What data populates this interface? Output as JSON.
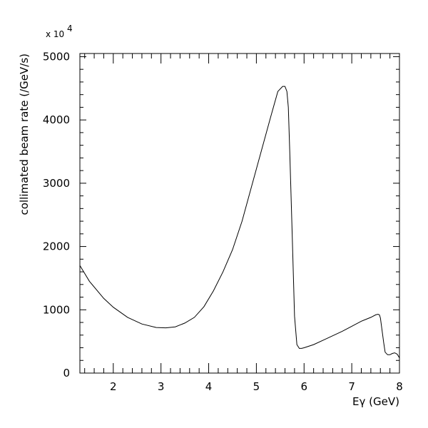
{
  "chart_data": {
    "type": "line",
    "title": "",
    "xlabel": "Eγ (GeV)",
    "ylabel": "collimated beam rate (/GeV/s)",
    "y_multiplier": "x 10",
    "y_multiplier_exponent": "4",
    "xlim": [
      1.3,
      8.0
    ],
    "ylim": [
      0,
      5050
    ],
    "x_ticks": [
      "2",
      "3",
      "4",
      "5",
      "6",
      "7",
      "8"
    ],
    "y_ticks": [
      "0",
      "1000",
      "2000",
      "3000",
      "4000",
      "5000"
    ],
    "grid": false,
    "series": [
      {
        "name": "",
        "x": [
          1.3,
          1.5,
          1.8,
          2.0,
          2.3,
          2.6,
          2.9,
          3.1,
          3.3,
          3.5,
          3.7,
          3.9,
          4.1,
          4.3,
          4.5,
          4.7,
          4.9,
          5.1,
          5.3,
          5.45,
          5.55,
          5.6,
          5.64,
          5.67,
          5.7,
          5.75,
          5.8,
          5.85,
          5.9,
          5.95,
          6.0,
          6.2,
          6.4,
          6.6,
          6.8,
          7.0,
          7.2,
          7.4,
          7.5,
          7.55,
          7.58,
          7.6,
          7.63,
          7.67,
          7.7,
          7.75,
          7.8,
          7.85,
          7.9,
          7.95,
          8.0
        ],
        "y": [
          1700,
          1450,
          1180,
          1040,
          880,
          775,
          720,
          715,
          730,
          790,
          880,
          1050,
          1300,
          1600,
          1950,
          2400,
          2950,
          3500,
          4050,
          4450,
          4530,
          4530,
          4450,
          4200,
          3500,
          2200,
          900,
          450,
          390,
          390,
          400,
          450,
          520,
          590,
          660,
          740,
          820,
          880,
          920,
          930,
          920,
          870,
          700,
          480,
          330,
          290,
          290,
          310,
          320,
          300,
          240
        ]
      }
    ]
  }
}
